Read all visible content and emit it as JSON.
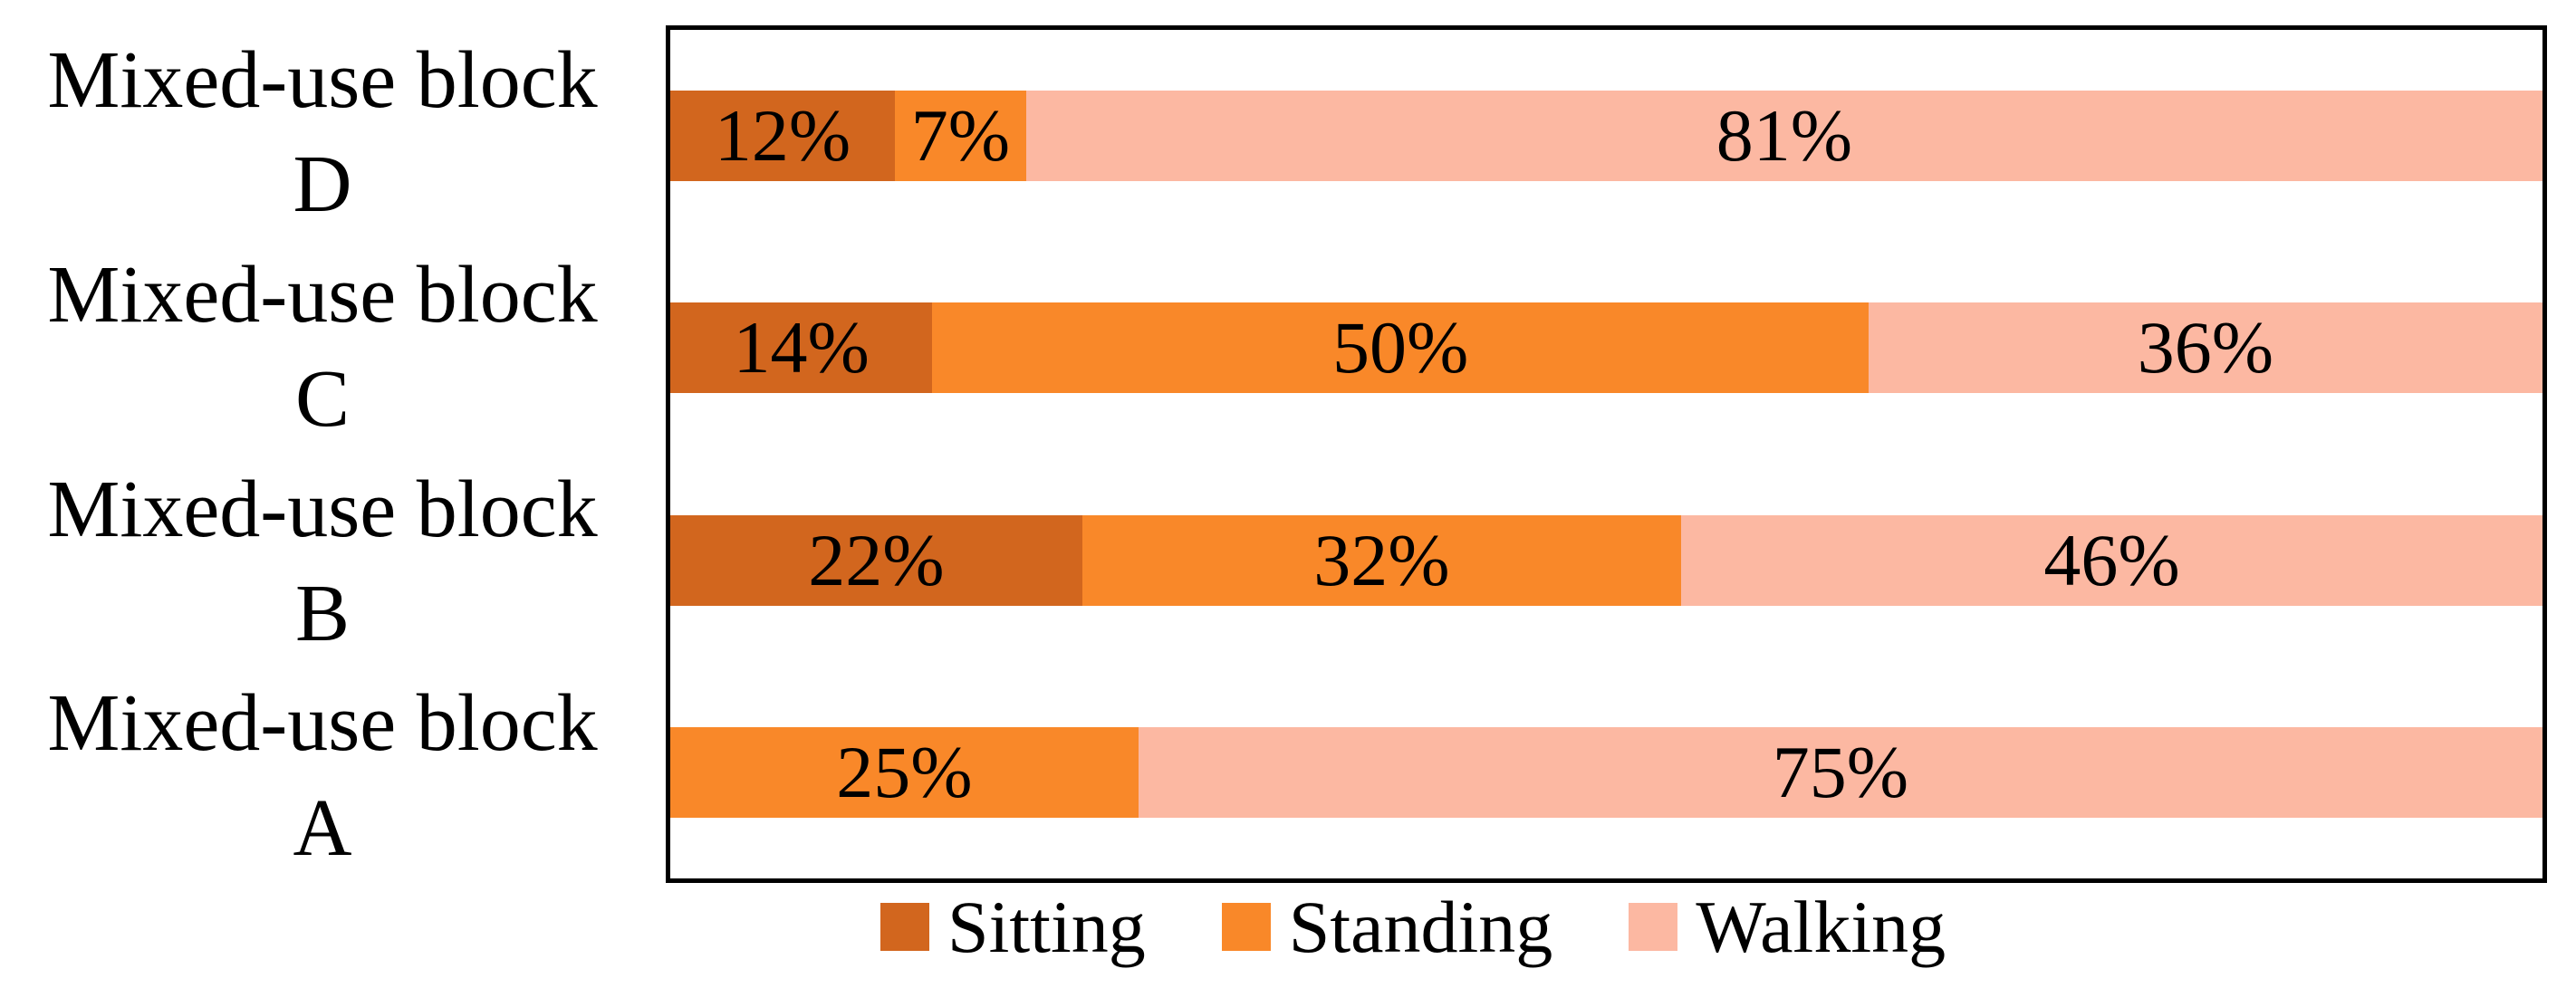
{
  "chart_data": {
    "type": "bar",
    "orientation": "horizontal-stacked",
    "title": "",
    "xlabel": "",
    "ylabel": "",
    "xlim": [
      0,
      100
    ],
    "grid": false,
    "legend_position": "bottom",
    "value_label_format": "percent",
    "categories": [
      {
        "line1": "Mixed-use block",
        "line2": "D"
      },
      {
        "line1": "Mixed-use block",
        "line2": "C"
      },
      {
        "line1": "Mixed-use block",
        "line2": "B"
      },
      {
        "line1": "Mixed-use block",
        "line2": "A"
      }
    ],
    "series": [
      {
        "name": "Sitting",
        "color": "#D2661E",
        "values": [
          12,
          14,
          22,
          0
        ]
      },
      {
        "name": "Standing",
        "color": "#F98829",
        "values": [
          7,
          50,
          32,
          25
        ]
      },
      {
        "name": "Walking",
        "color": "#FCB8A2",
        "values": [
          81,
          36,
          46,
          75
        ]
      }
    ],
    "value_labels": [
      [
        "12%",
        "7%",
        "81%"
      ],
      [
        "14%",
        "50%",
        "36%"
      ],
      [
        "22%",
        "32%",
        "46%"
      ],
      [
        "",
        "25%",
        "75%"
      ]
    ]
  },
  "colors": {
    "plot_border": "#000000",
    "background": "#ffffff",
    "label_text": "#000000"
  },
  "legend": {
    "items": [
      {
        "label": "Sitting",
        "color": "#D2661E"
      },
      {
        "label": "Standing",
        "color": "#F98829"
      },
      {
        "label": "Walking",
        "color": "#FCB8A2"
      }
    ]
  }
}
